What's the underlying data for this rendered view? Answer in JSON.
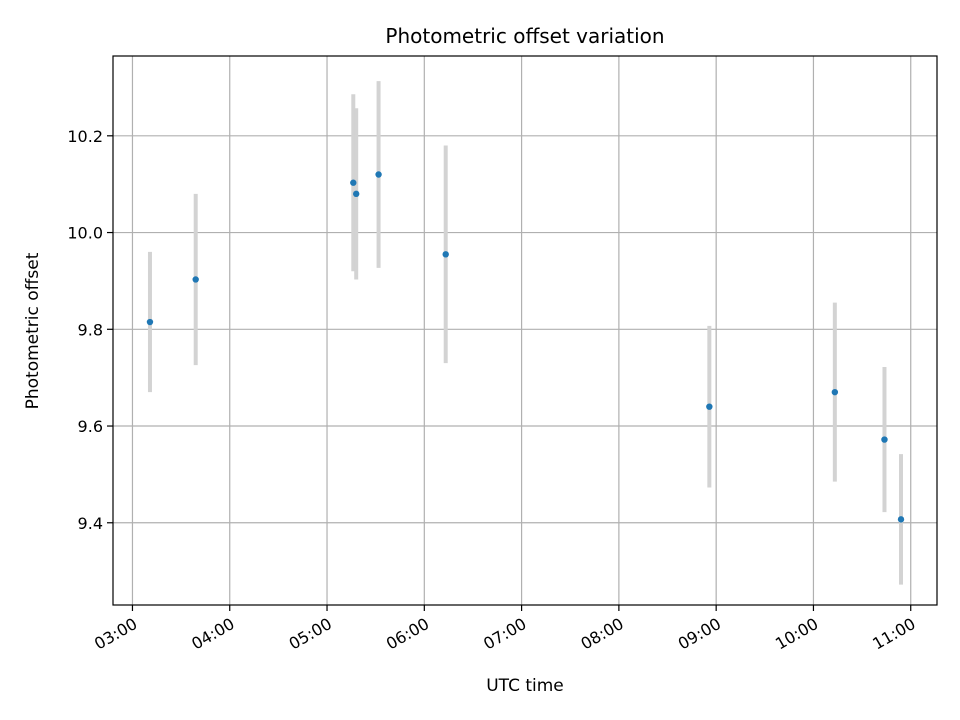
{
  "chart_data": {
    "type": "scatter",
    "title": "Photometric offset variation",
    "xlabel": "UTC time",
    "ylabel": "Photometric offset",
    "x_tick_labels": [
      "03:00",
      "04:00",
      "05:00",
      "06:00",
      "07:00",
      "08:00",
      "09:00",
      "10:00",
      "11:00"
    ],
    "x_tick_hours": [
      3,
      4,
      5,
      6,
      7,
      8,
      9,
      10,
      11
    ],
    "y_ticks": [
      9.4,
      9.6,
      9.8,
      10.0,
      10.2
    ],
    "y_tick_labels": [
      "9.4",
      "9.6",
      "9.8",
      "10.0",
      "10.2"
    ],
    "xlim_hours": [
      2.8,
      11.27
    ],
    "ylim": [
      9.23,
      10.365
    ],
    "grid": true,
    "marker_color": "#1f77b4",
    "errorbar_color": "#d3d3d3",
    "points": [
      {
        "time": "03:11",
        "t": 3.18,
        "y": 9.815,
        "err": 0.145
      },
      {
        "time": "03:39",
        "t": 3.65,
        "y": 9.903,
        "err": 0.177
      },
      {
        "time": "05:16",
        "t": 5.27,
        "y": 10.103,
        "err": 0.183
      },
      {
        "time": "05:18",
        "t": 5.3,
        "y": 10.08,
        "err": 0.177
      },
      {
        "time": "05:32",
        "t": 5.53,
        "y": 10.12,
        "err": 0.193
      },
      {
        "time": "06:13",
        "t": 6.22,
        "y": 9.955,
        "err": 0.225
      },
      {
        "time": "08:56",
        "t": 8.93,
        "y": 9.64,
        "err": 0.167
      },
      {
        "time": "10:13",
        "t": 10.22,
        "y": 9.67,
        "err": 0.185
      },
      {
        "time": "10:44",
        "t": 10.73,
        "y": 9.572,
        "err": 0.15
      },
      {
        "time": "10:54",
        "t": 10.9,
        "y": 9.407,
        "err": 0.135
      }
    ]
  }
}
